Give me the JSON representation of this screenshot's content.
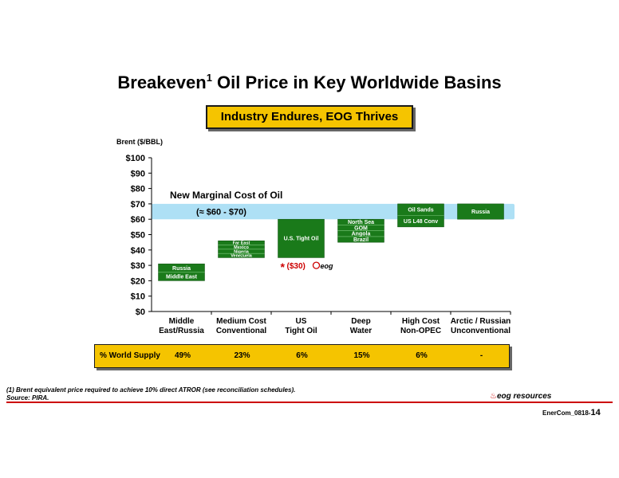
{
  "header": {
    "title": "Breakeven",
    "title_superscript": "1",
    "title_rest": " Oil Price in Key Worldwide Basins",
    "banner": "Industry Endures, EOG Thrives"
  },
  "chart_data": {
    "type": "bar",
    "ylabel": "Brent ($/BBL)",
    "ylim": [
      0,
      100
    ],
    "y_ticks": [
      "$0",
      "$10",
      "$20",
      "$30",
      "$40",
      "$50",
      "$60",
      "$70",
      "$80",
      "$90",
      "$100"
    ],
    "categories": [
      {
        "line1": "Middle",
        "line2": "East/Russia"
      },
      {
        "line1": "Medium Cost",
        "line2": "Conventional"
      },
      {
        "line1": "US",
        "line2": "Tight Oil"
      },
      {
        "line1": "Deep",
        "line2": "Water"
      },
      {
        "line1": "High Cost",
        "line2": "Non-OPEC"
      },
      {
        "line1": "Arctic / Russian",
        "line2": "Unconventional"
      }
    ],
    "marginal_cost_band": {
      "low": 60,
      "high": 70,
      "label": "New Marginal Cost of Oil",
      "range_label": "(≈ $60 - $70)"
    },
    "ranges": [
      {
        "category": 0,
        "low": 20,
        "high": 31,
        "segments": [
          "Russia",
          "Middle East"
        ]
      },
      {
        "category": 1,
        "low": 35,
        "high": 46,
        "segments": [
          "Far East",
          "Mexico",
          "Nigeria",
          "Venezuela"
        ]
      },
      {
        "category": 2,
        "low": 35,
        "high": 60,
        "segments": [
          "U.S. Tight Oil"
        ]
      },
      {
        "category": 3,
        "low": 45,
        "high": 60,
        "segments": [
          "North Sea",
          "GOM",
          "Angola",
          "Brazil"
        ]
      },
      {
        "category": 4,
        "low": 55,
        "high": 70,
        "segments": [
          "Oil Sands",
          "US L48 Conv"
        ]
      },
      {
        "category": 5,
        "low": 60,
        "high": 70,
        "segments": [
          "Russia"
        ]
      }
    ],
    "eog_marker": {
      "value": 30,
      "star": "*",
      "label": "($30)",
      "logo": "eog"
    },
    "world_supply": {
      "label": "% World Supply",
      "values": [
        "49%",
        "23%",
        "6%",
        "15%",
        "6%",
        "-"
      ]
    },
    "colors": {
      "bar": "#1a7a1a",
      "band": "#aee0f5",
      "banner": "#f5c400",
      "eog": "#cc0000"
    }
  },
  "footer": {
    "footnote": "(1) Brent equivalent price required to achieve 10% direct ATROR (see reconciliation schedules).",
    "source": "Source: PIRA.",
    "logo_text": "eog resources",
    "slide_code": "EnerCom_0818-",
    "slide_number": "14"
  }
}
